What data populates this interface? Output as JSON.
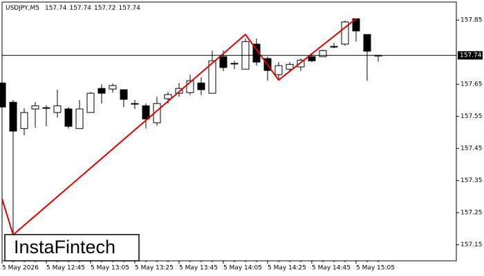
{
  "chart_data": {
    "type": "candlestick",
    "title": "USDJPY,M5",
    "categories": [
      "5 May 2026",
      null,
      null,
      null,
      "5 May 12:45",
      null,
      null,
      null,
      "5 May 13:05",
      null,
      null,
      null,
      "5 May 13:25",
      null,
      null,
      null,
      "5 May 13:45",
      null,
      null,
      null,
      "5 May 14:05",
      null,
      null,
      null,
      "5 May 14:25",
      null,
      null,
      null,
      "5 May 14:45",
      null,
      null,
      null,
      "5 May 15:05",
      null,
      null
    ],
    "open": [
      157.654,
      157.594,
      157.512,
      157.573,
      157.577,
      157.562,
      157.573,
      157.512,
      157.562,
      157.637,
      157.635,
      157.633,
      157.59,
      157.583,
      157.53,
      157.605,
      157.622,
      157.624,
      157.654,
      157.622,
      157.736,
      157.715,
      157.697,
      157.775,
      157.73,
      157.68,
      157.697,
      157.704,
      157.736,
      157.736,
      157.768,
      157.775,
      157.854,
      157.805,
      157.74
    ],
    "high": [
      157.659,
      157.601,
      157.575,
      157.594,
      157.585,
      157.633,
      157.579,
      157.601,
      157.626,
      157.65,
      157.652,
      157.633,
      157.601,
      157.59,
      157.611,
      157.626,
      157.654,
      157.68,
      157.672,
      157.755,
      157.755,
      157.723,
      157.792,
      157.792,
      157.736,
      157.719,
      157.719,
      157.73,
      157.745,
      157.758,
      157.779,
      157.848,
      157.854,
      157.805,
      157.74
    ],
    "low": [
      157.573,
      157.181,
      157.491,
      157.515,
      157.519,
      157.547,
      157.512,
      157.512,
      157.562,
      157.59,
      157.624,
      157.579,
      157.573,
      157.512,
      157.521,
      157.59,
      157.611,
      157.616,
      157.616,
      157.622,
      157.691,
      157.697,
      157.697,
      157.708,
      157.661,
      157.665,
      157.687,
      157.691,
      157.719,
      157.736,
      157.762,
      157.77,
      157.783,
      157.661,
      157.72
    ],
    "close": [
      157.579,
      157.504,
      157.562,
      157.583,
      157.575,
      157.583,
      157.519,
      157.573,
      157.622,
      157.622,
      157.646,
      157.603,
      157.588,
      157.542,
      157.59,
      157.618,
      157.637,
      157.661,
      157.633,
      157.723,
      157.702,
      157.713,
      157.783,
      157.719,
      157.693,
      157.708,
      157.712,
      157.725,
      157.723,
      157.755,
      157.768,
      157.844,
      157.816,
      157.753,
      157.74
    ],
    "pattern": {
      "color": "#e00000",
      "x": [
        0,
        1,
        22,
        25,
        32
      ],
      "values": [
        157.293,
        157.181,
        157.805,
        157.663,
        157.854
      ]
    },
    "last_price": 157.74,
    "ylim": [
      157.1,
      157.906
    ],
    "yticks": [
      157.15,
      157.25,
      157.35,
      157.45,
      157.55,
      157.65,
      157.85
    ],
    "brand": "InstaFintech"
  }
}
